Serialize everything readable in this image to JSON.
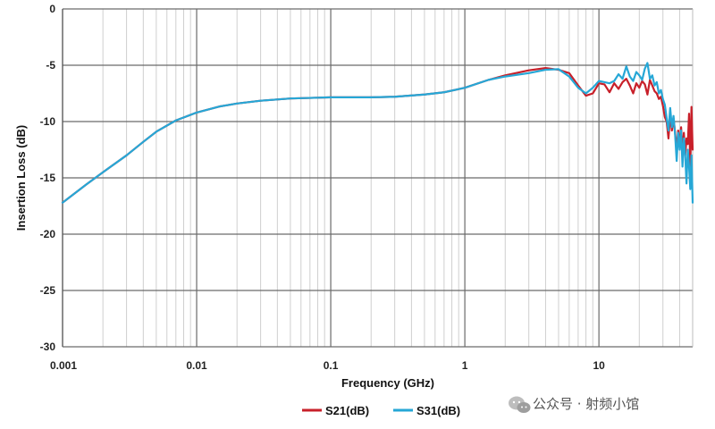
{
  "chart_data": {
    "type": "line",
    "xlabel": "Frequency (GHz)",
    "ylabel": "Insertion Loss (dB)",
    "x_scale": "log",
    "xlim": [
      0.001,
      50
    ],
    "ylim": [
      -30,
      0
    ],
    "x_ticks": [
      {
        "value": 0.001,
        "label": "0.001"
      },
      {
        "value": 0.01,
        "label": "0.01"
      },
      {
        "value": 0.1,
        "label": "0.1"
      },
      {
        "value": 1,
        "label": "1"
      },
      {
        "value": 10,
        "label": "10"
      }
    ],
    "y_ticks": [
      {
        "value": 0,
        "label": "0"
      },
      {
        "value": -5,
        "label": "-5"
      },
      {
        "value": -10,
        "label": "-10"
      },
      {
        "value": -15,
        "label": "-15"
      },
      {
        "value": -20,
        "label": "-20"
      },
      {
        "value": -25,
        "label": "-25"
      },
      {
        "value": -30,
        "label": "-30"
      }
    ],
    "grid": true,
    "legend_position": "bottom",
    "series": [
      {
        "name": "S21(dB)",
        "color": "#c8202a",
        "points": [
          [
            0.001,
            -17.2
          ],
          [
            0.0015,
            -15.6
          ],
          [
            0.002,
            -14.5
          ],
          [
            0.003,
            -13.0
          ],
          [
            0.004,
            -11.8
          ],
          [
            0.005,
            -10.9
          ],
          [
            0.007,
            -9.9
          ],
          [
            0.01,
            -9.2
          ],
          [
            0.015,
            -8.65
          ],
          [
            0.02,
            -8.4
          ],
          [
            0.03,
            -8.15
          ],
          [
            0.05,
            -7.95
          ],
          [
            0.07,
            -7.9
          ],
          [
            0.1,
            -7.85
          ],
          [
            0.2,
            -7.85
          ],
          [
            0.3,
            -7.8
          ],
          [
            0.5,
            -7.6
          ],
          [
            0.7,
            -7.4
          ],
          [
            1.0,
            -7.0
          ],
          [
            1.5,
            -6.3
          ],
          [
            2.0,
            -5.9
          ],
          [
            3.0,
            -5.45
          ],
          [
            4.0,
            -5.25
          ],
          [
            5.0,
            -5.4
          ],
          [
            6.0,
            -5.7
          ],
          [
            7.0,
            -6.8
          ],
          [
            8.0,
            -7.7
          ],
          [
            9.0,
            -7.5
          ],
          [
            10.0,
            -6.6
          ],
          [
            11.0,
            -6.7
          ],
          [
            12.0,
            -7.4
          ],
          [
            13.0,
            -6.6
          ],
          [
            14.0,
            -7.1
          ],
          [
            15.0,
            -6.5
          ],
          [
            16.0,
            -6.2
          ],
          [
            17.0,
            -6.8
          ],
          [
            18.0,
            -7.5
          ],
          [
            19.0,
            -6.6
          ],
          [
            20.0,
            -7.0
          ],
          [
            21.0,
            -6.4
          ],
          [
            22.0,
            -6.7
          ],
          [
            23.0,
            -7.6
          ],
          [
            24.0,
            -6.3
          ],
          [
            25.0,
            -6.8
          ],
          [
            26.0,
            -7.3
          ],
          [
            27.0,
            -7.5
          ],
          [
            28.0,
            -8.0
          ],
          [
            29.0,
            -7.8
          ],
          [
            30.0,
            -8.6
          ],
          [
            31.0,
            -9.6
          ],
          [
            32.0,
            -10.0
          ],
          [
            33.0,
            -11.5
          ],
          [
            34.0,
            -9.5
          ],
          [
            35.0,
            -10.8
          ],
          [
            36.0,
            -9.7
          ],
          [
            37.0,
            -11.0
          ],
          [
            38.0,
            -12.5
          ],
          [
            39.0,
            -10.8
          ],
          [
            40.0,
            -12.0
          ],
          [
            41.0,
            -10.5
          ],
          [
            42.0,
            -12.7
          ],
          [
            43.0,
            -11.0
          ],
          [
            44.0,
            -13.0
          ],
          [
            45.0,
            -11.5
          ],
          [
            46.0,
            -12.0
          ],
          [
            47.0,
            -9.3
          ],
          [
            48.0,
            -14.0
          ],
          [
            49.0,
            -8.7
          ],
          [
            50.0,
            -12.5
          ]
        ]
      },
      {
        "name": "S31(dB)",
        "color": "#26a7d6",
        "points": [
          [
            0.001,
            -17.2
          ],
          [
            0.0015,
            -15.6
          ],
          [
            0.002,
            -14.5
          ],
          [
            0.003,
            -13.0
          ],
          [
            0.004,
            -11.8
          ],
          [
            0.005,
            -10.9
          ],
          [
            0.007,
            -9.9
          ],
          [
            0.01,
            -9.2
          ],
          [
            0.015,
            -8.65
          ],
          [
            0.02,
            -8.4
          ],
          [
            0.03,
            -8.15
          ],
          [
            0.05,
            -7.95
          ],
          [
            0.07,
            -7.9
          ],
          [
            0.1,
            -7.85
          ],
          [
            0.2,
            -7.85
          ],
          [
            0.3,
            -7.8
          ],
          [
            0.5,
            -7.6
          ],
          [
            0.7,
            -7.4
          ],
          [
            1.0,
            -7.0
          ],
          [
            1.5,
            -6.3
          ],
          [
            2.0,
            -6.0
          ],
          [
            3.0,
            -5.7
          ],
          [
            4.0,
            -5.4
          ],
          [
            5.0,
            -5.35
          ],
          [
            6.0,
            -6.0
          ],
          [
            7.0,
            -7.0
          ],
          [
            8.0,
            -7.5
          ],
          [
            9.0,
            -7.0
          ],
          [
            10.0,
            -6.4
          ],
          [
            11.0,
            -6.5
          ],
          [
            12.0,
            -6.6
          ],
          [
            13.0,
            -6.4
          ],
          [
            14.0,
            -5.8
          ],
          [
            15.0,
            -6.2
          ],
          [
            16.0,
            -5.1
          ],
          [
            17.0,
            -6.0
          ],
          [
            18.0,
            -6.4
          ],
          [
            19.0,
            -5.6
          ],
          [
            20.0,
            -5.9
          ],
          [
            21.0,
            -6.3
          ],
          [
            22.0,
            -5.3
          ],
          [
            23.0,
            -4.8
          ],
          [
            24.0,
            -6.2
          ],
          [
            25.0,
            -5.9
          ],
          [
            26.0,
            -6.8
          ],
          [
            27.0,
            -6.5
          ],
          [
            28.0,
            -7.5
          ],
          [
            29.0,
            -7.2
          ],
          [
            30.0,
            -8.0
          ],
          [
            31.0,
            -8.5
          ],
          [
            32.0,
            -9.7
          ],
          [
            33.0,
            -10.8
          ],
          [
            34.0,
            -8.8
          ],
          [
            35.0,
            -10.5
          ],
          [
            36.0,
            -9.5
          ],
          [
            37.0,
            -11.2
          ],
          [
            38.0,
            -13.5
          ],
          [
            39.0,
            -11.0
          ],
          [
            40.0,
            -12.5
          ],
          [
            41.0,
            -10.8
          ],
          [
            42.0,
            -14.0
          ],
          [
            43.0,
            -11.5
          ],
          [
            44.0,
            -13.0
          ],
          [
            45.0,
            -15.5
          ],
          [
            46.0,
            -12.5
          ],
          [
            47.0,
            -14.0
          ],
          [
            48.0,
            -16.0
          ],
          [
            49.0,
            -13.0
          ],
          [
            50.0,
            -17.2
          ]
        ]
      }
    ]
  },
  "watermark": {
    "text": "公众号 · 射频小馆",
    "icon": "wechat-icon"
  }
}
